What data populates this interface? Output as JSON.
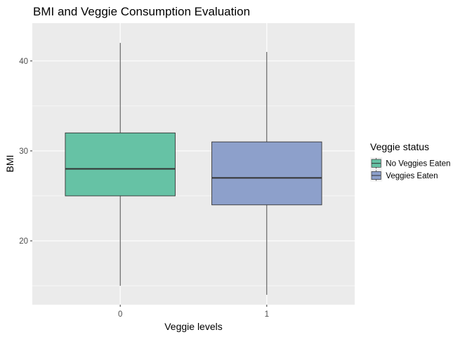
{
  "chart_data": {
    "type": "boxplot",
    "title": "BMI and Veggie Consumption Evaluation",
    "xlabel": "Veggie levels",
    "ylabel": "BMI",
    "categories": [
      "0",
      "1"
    ],
    "ylim": [
      12.9,
      44.2
    ],
    "yticks": [
      20,
      30,
      40
    ],
    "grid": true,
    "legend": {
      "title": "Veggie status",
      "placement": "right",
      "entries": [
        {
          "label": "No Veggies Eaten",
          "color": "#66c2a5"
        },
        {
          "label": "Veggies Eaten",
          "color": "#8da0cb"
        }
      ]
    },
    "series": [
      {
        "category": "0",
        "min": 15,
        "q1": 25,
        "median": 28,
        "q3": 32,
        "max": 42,
        "color": "#66c2a5"
      },
      {
        "category": "1",
        "min": 14,
        "q1": 24,
        "median": 27,
        "q3": 31,
        "max": 41,
        "color": "#8da0cb"
      }
    ]
  }
}
